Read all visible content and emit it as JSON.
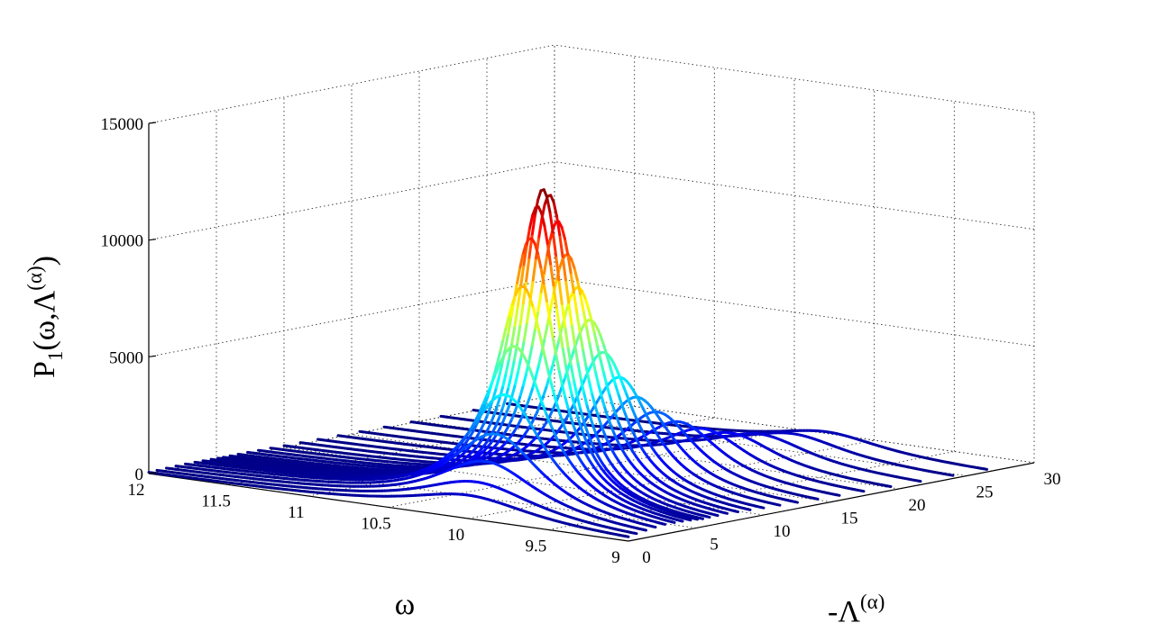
{
  "chart_data": {
    "type": "line",
    "subtype": "3d-waterfall",
    "title": "",
    "x": {
      "label": "ω",
      "range": [
        9,
        12
      ],
      "ticks": [
        9,
        9.5,
        10,
        10.5,
        11,
        11.5,
        12
      ],
      "tick_labels": [
        "9",
        "9.5",
        "10",
        "10.5",
        "11",
        "11.5",
        "12"
      ]
    },
    "y": {
      "label_prefix": "-Λ",
      "label_sup": "(α)",
      "range": [
        0,
        30
      ],
      "ticks": [
        0,
        5,
        10,
        15,
        20,
        25,
        30
      ],
      "tick_labels": [
        "0",
        "5",
        "10",
        "15",
        "20",
        "25",
        "30"
      ]
    },
    "z": {
      "label_main": "P",
      "label_sub": "1",
      "label_args": "(ω,Λ",
      "label_sup": "(α)",
      "label_close": ")",
      "range": [
        0,
        15000
      ],
      "ticks": [
        0,
        5000,
        10000,
        15000
      ],
      "tick_labels": [
        "0",
        "5000",
        "10000",
        "15000"
      ]
    },
    "grid": true,
    "colormap": "jet",
    "colormap_range": [
      0,
      13500
    ],
    "peak": {
      "omega": 10.0,
      "minus_lambda": 5.5,
      "value": 13500
    },
    "series": [
      {
        "minus_lambda": 0.0,
        "peak": 1000,
        "center": 10.0,
        "width": 0.95
      },
      {
        "minus_lambda": 0.6,
        "peak": 1500,
        "center": 10.0,
        "width": 0.9
      },
      {
        "minus_lambda": 1.3,
        "peak": 2300,
        "center": 10.0,
        "width": 0.8
      },
      {
        "minus_lambda": 2.0,
        "peak": 3400,
        "center": 10.0,
        "width": 0.7
      },
      {
        "minus_lambda": 2.7,
        "peak": 5000,
        "center": 10.0,
        "width": 0.6
      },
      {
        "minus_lambda": 3.4,
        "peak": 7000,
        "center": 10.0,
        "width": 0.5
      },
      {
        "minus_lambda": 4.0,
        "peak": 9500,
        "center": 10.0,
        "width": 0.42
      },
      {
        "minus_lambda": 4.6,
        "peak": 11500,
        "center": 10.0,
        "width": 0.37
      },
      {
        "minus_lambda": 5.1,
        "peak": 12800,
        "center": 10.0,
        "width": 0.34
      },
      {
        "minus_lambda": 5.5,
        "peak": 13500,
        "center": 10.0,
        "width": 0.32
      },
      {
        "minus_lambda": 6.0,
        "peak": 13200,
        "center": 10.0,
        "width": 0.33
      },
      {
        "minus_lambda": 6.6,
        "peak": 12000,
        "center": 10.0,
        "width": 0.35
      },
      {
        "minus_lambda": 7.3,
        "peak": 10500,
        "center": 10.0,
        "width": 0.38
      },
      {
        "minus_lambda": 8.1,
        "peak": 9000,
        "center": 10.0,
        "width": 0.4
      },
      {
        "minus_lambda": 9.0,
        "peak": 7500,
        "center": 10.0,
        "width": 0.43
      },
      {
        "minus_lambda": 10.0,
        "peak": 6000,
        "center": 10.0,
        "width": 0.46
      },
      {
        "minus_lambda": 11.2,
        "peak": 4800,
        "center": 10.0,
        "width": 0.5
      },
      {
        "minus_lambda": 12.5,
        "peak": 3800,
        "center": 10.0,
        "width": 0.54
      },
      {
        "minus_lambda": 14.0,
        "peak": 3000,
        "center": 10.0,
        "width": 0.58
      },
      {
        "minus_lambda": 15.6,
        "peak": 2400,
        "center": 10.0,
        "width": 0.62
      },
      {
        "minus_lambda": 17.4,
        "peak": 1900,
        "center": 10.0,
        "width": 0.66
      },
      {
        "minus_lambda": 19.4,
        "peak": 1500,
        "center": 10.0,
        "width": 0.7
      },
      {
        "minus_lambda": 21.6,
        "peak": 1200,
        "center": 10.0,
        "width": 0.74
      },
      {
        "minus_lambda": 24.0,
        "peak": 950,
        "center": 10.0,
        "width": 0.78
      },
      {
        "minus_lambda": 26.5,
        "peak": 750,
        "center": 10.0,
        "width": 0.82
      }
    ]
  }
}
